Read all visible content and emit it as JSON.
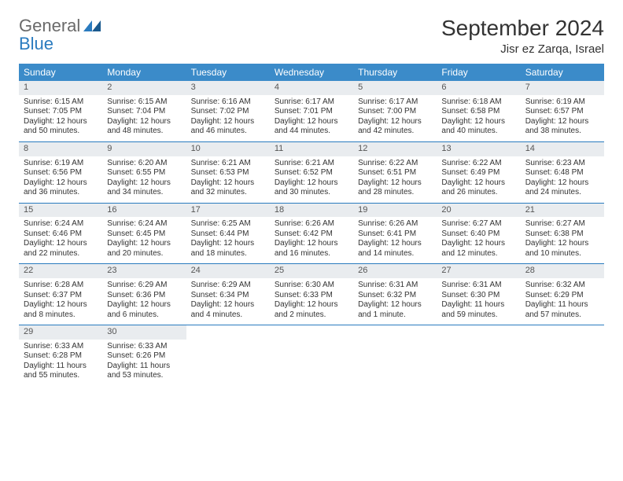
{
  "logo": {
    "general": "General",
    "blue": "Blue"
  },
  "title": "September 2024",
  "location": "Jisr ez Zarqa, Israel",
  "colors": {
    "header_bg": "#3b8bc9",
    "header_text": "#ffffff",
    "daynum_bg": "#e9ecef",
    "row_divider": "#2a7bbf",
    "logo_gray": "#6a6a6a",
    "logo_blue": "#2a7bbf"
  },
  "day_headers": [
    "Sunday",
    "Monday",
    "Tuesday",
    "Wednesday",
    "Thursday",
    "Friday",
    "Saturday"
  ],
  "weeks": [
    [
      {
        "n": "1",
        "sr": "Sunrise: 6:15 AM",
        "ss": "Sunset: 7:05 PM",
        "d1": "Daylight: 12 hours",
        "d2": "and 50 minutes."
      },
      {
        "n": "2",
        "sr": "Sunrise: 6:15 AM",
        "ss": "Sunset: 7:04 PM",
        "d1": "Daylight: 12 hours",
        "d2": "and 48 minutes."
      },
      {
        "n": "3",
        "sr": "Sunrise: 6:16 AM",
        "ss": "Sunset: 7:02 PM",
        "d1": "Daylight: 12 hours",
        "d2": "and 46 minutes."
      },
      {
        "n": "4",
        "sr": "Sunrise: 6:17 AM",
        "ss": "Sunset: 7:01 PM",
        "d1": "Daylight: 12 hours",
        "d2": "and 44 minutes."
      },
      {
        "n": "5",
        "sr": "Sunrise: 6:17 AM",
        "ss": "Sunset: 7:00 PM",
        "d1": "Daylight: 12 hours",
        "d2": "and 42 minutes."
      },
      {
        "n": "6",
        "sr": "Sunrise: 6:18 AM",
        "ss": "Sunset: 6:58 PM",
        "d1": "Daylight: 12 hours",
        "d2": "and 40 minutes."
      },
      {
        "n": "7",
        "sr": "Sunrise: 6:19 AM",
        "ss": "Sunset: 6:57 PM",
        "d1": "Daylight: 12 hours",
        "d2": "and 38 minutes."
      }
    ],
    [
      {
        "n": "8",
        "sr": "Sunrise: 6:19 AM",
        "ss": "Sunset: 6:56 PM",
        "d1": "Daylight: 12 hours",
        "d2": "and 36 minutes."
      },
      {
        "n": "9",
        "sr": "Sunrise: 6:20 AM",
        "ss": "Sunset: 6:55 PM",
        "d1": "Daylight: 12 hours",
        "d2": "and 34 minutes."
      },
      {
        "n": "10",
        "sr": "Sunrise: 6:21 AM",
        "ss": "Sunset: 6:53 PM",
        "d1": "Daylight: 12 hours",
        "d2": "and 32 minutes."
      },
      {
        "n": "11",
        "sr": "Sunrise: 6:21 AM",
        "ss": "Sunset: 6:52 PM",
        "d1": "Daylight: 12 hours",
        "d2": "and 30 minutes."
      },
      {
        "n": "12",
        "sr": "Sunrise: 6:22 AM",
        "ss": "Sunset: 6:51 PM",
        "d1": "Daylight: 12 hours",
        "d2": "and 28 minutes."
      },
      {
        "n": "13",
        "sr": "Sunrise: 6:22 AM",
        "ss": "Sunset: 6:49 PM",
        "d1": "Daylight: 12 hours",
        "d2": "and 26 minutes."
      },
      {
        "n": "14",
        "sr": "Sunrise: 6:23 AM",
        "ss": "Sunset: 6:48 PM",
        "d1": "Daylight: 12 hours",
        "d2": "and 24 minutes."
      }
    ],
    [
      {
        "n": "15",
        "sr": "Sunrise: 6:24 AM",
        "ss": "Sunset: 6:46 PM",
        "d1": "Daylight: 12 hours",
        "d2": "and 22 minutes."
      },
      {
        "n": "16",
        "sr": "Sunrise: 6:24 AM",
        "ss": "Sunset: 6:45 PM",
        "d1": "Daylight: 12 hours",
        "d2": "and 20 minutes."
      },
      {
        "n": "17",
        "sr": "Sunrise: 6:25 AM",
        "ss": "Sunset: 6:44 PM",
        "d1": "Daylight: 12 hours",
        "d2": "and 18 minutes."
      },
      {
        "n": "18",
        "sr": "Sunrise: 6:26 AM",
        "ss": "Sunset: 6:42 PM",
        "d1": "Daylight: 12 hours",
        "d2": "and 16 minutes."
      },
      {
        "n": "19",
        "sr": "Sunrise: 6:26 AM",
        "ss": "Sunset: 6:41 PM",
        "d1": "Daylight: 12 hours",
        "d2": "and 14 minutes."
      },
      {
        "n": "20",
        "sr": "Sunrise: 6:27 AM",
        "ss": "Sunset: 6:40 PM",
        "d1": "Daylight: 12 hours",
        "d2": "and 12 minutes."
      },
      {
        "n": "21",
        "sr": "Sunrise: 6:27 AM",
        "ss": "Sunset: 6:38 PM",
        "d1": "Daylight: 12 hours",
        "d2": "and 10 minutes."
      }
    ],
    [
      {
        "n": "22",
        "sr": "Sunrise: 6:28 AM",
        "ss": "Sunset: 6:37 PM",
        "d1": "Daylight: 12 hours",
        "d2": "and 8 minutes."
      },
      {
        "n": "23",
        "sr": "Sunrise: 6:29 AM",
        "ss": "Sunset: 6:36 PM",
        "d1": "Daylight: 12 hours",
        "d2": "and 6 minutes."
      },
      {
        "n": "24",
        "sr": "Sunrise: 6:29 AM",
        "ss": "Sunset: 6:34 PM",
        "d1": "Daylight: 12 hours",
        "d2": "and 4 minutes."
      },
      {
        "n": "25",
        "sr": "Sunrise: 6:30 AM",
        "ss": "Sunset: 6:33 PM",
        "d1": "Daylight: 12 hours",
        "d2": "and 2 minutes."
      },
      {
        "n": "26",
        "sr": "Sunrise: 6:31 AM",
        "ss": "Sunset: 6:32 PM",
        "d1": "Daylight: 12 hours",
        "d2": "and 1 minute."
      },
      {
        "n": "27",
        "sr": "Sunrise: 6:31 AM",
        "ss": "Sunset: 6:30 PM",
        "d1": "Daylight: 11 hours",
        "d2": "and 59 minutes."
      },
      {
        "n": "28",
        "sr": "Sunrise: 6:32 AM",
        "ss": "Sunset: 6:29 PM",
        "d1": "Daylight: 11 hours",
        "d2": "and 57 minutes."
      }
    ],
    [
      {
        "n": "29",
        "sr": "Sunrise: 6:33 AM",
        "ss": "Sunset: 6:28 PM",
        "d1": "Daylight: 11 hours",
        "d2": "and 55 minutes."
      },
      {
        "n": "30",
        "sr": "Sunrise: 6:33 AM",
        "ss": "Sunset: 6:26 PM",
        "d1": "Daylight: 11 hours",
        "d2": "and 53 minutes."
      },
      null,
      null,
      null,
      null,
      null
    ]
  ]
}
